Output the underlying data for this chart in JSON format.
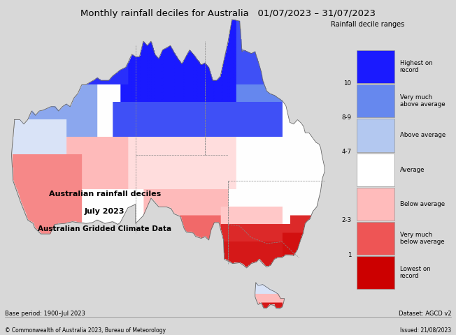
{
  "title": "Monthly rainfall deciles for Australia   01/07/2023 – 31/07/2023",
  "title_fontsize": 9.5,
  "subtitle1": "Australian rainfall deciles",
  "subtitle2": "July 2023",
  "subtitle3": "Australian Gridded Climate Data",
  "base_period": "Base period: 1900–Jul 2023",
  "dataset": "Dataset: AGCD v2",
  "issued": "Issued: 21/08/2023",
  "copyright": "© Commonwealth of Australia 2023, Bureau of Meteorology",
  "legend_title": "Rainfall decile ranges",
  "legend_entries": [
    {
      "label": "Highest on\nrecord",
      "color": "#1a1aff"
    },
    {
      "label": "Very much\nabove average",
      "color": "#6688ee"
    },
    {
      "label": "Above average",
      "color": "#b3c8f0"
    },
    {
      "label": "Average",
      "color": "#ffffff"
    },
    {
      "label": "Below average",
      "color": "#ffbbbb"
    },
    {
      "label": "Very much\nbelow average",
      "color": "#ee5555"
    },
    {
      "label": "Lowest on\nrecord",
      "color": "#cc0000"
    }
  ],
  "legend_ticks": [
    "10",
    "8-9",
    "4-7",
    "2-3",
    "1"
  ],
  "background_color": "#d8d8d8",
  "map_background": "#ffffff",
  "border_color": "#888888",
  "fig_width": 6.52,
  "fig_height": 4.8,
  "lon_min": 112,
  "lon_max": 154,
  "lat_min": -44,
  "lat_max": -10
}
